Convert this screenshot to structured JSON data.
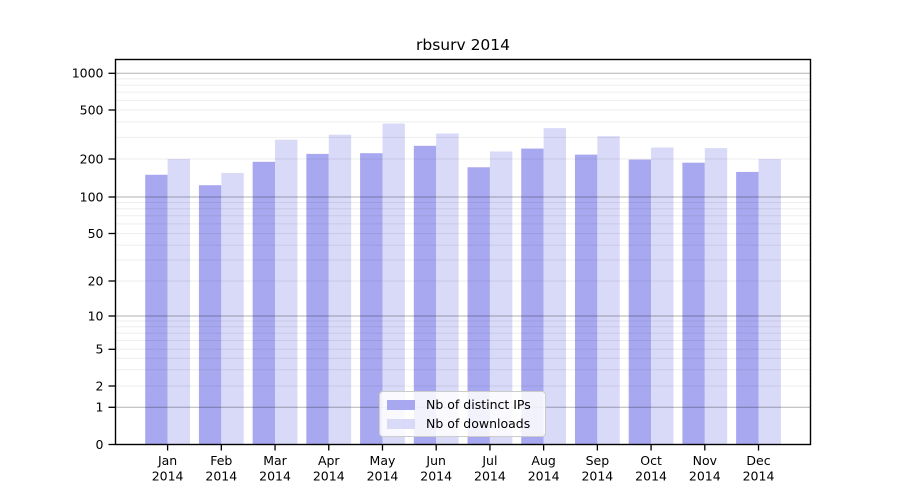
{
  "title": "rbsurv 2014",
  "colors": {
    "distinct_ips": "#a8a8f0",
    "downloads": "#d9d9f8",
    "major_grid": "rgba(0,0,0,0.30)",
    "minor_grid": "rgba(0,0,0,0.07)",
    "axis": "#000000"
  },
  "chart_data": {
    "type": "bar",
    "title": "rbsurv 2014",
    "xlabel": "",
    "ylabel": "",
    "y_scale": "log-like (labeled ticks 0,1,2,5,...,1000; minor log gridlines)",
    "y_ticks": [
      0,
      1,
      2,
      5,
      10,
      20,
      50,
      100,
      200,
      500,
      1000
    ],
    "ylim": [
      0,
      1300
    ],
    "grid": "on (major at powers of 10 darker, log minors lighter, drawn over bars)",
    "legend_position": "inside bottom-center",
    "categories": [
      {
        "month": "Jan",
        "year": "2014"
      },
      {
        "month": "Feb",
        "year": "2014"
      },
      {
        "month": "Mar",
        "year": "2014"
      },
      {
        "month": "Apr",
        "year": "2014"
      },
      {
        "month": "May",
        "year": "2014"
      },
      {
        "month": "Jun",
        "year": "2014"
      },
      {
        "month": "Jul",
        "year": "2014"
      },
      {
        "month": "Aug",
        "year": "2014"
      },
      {
        "month": "Sep",
        "year": "2014"
      },
      {
        "month": "Oct",
        "year": "2014"
      },
      {
        "month": "Nov",
        "year": "2014"
      },
      {
        "month": "Dec",
        "year": "2014"
      }
    ],
    "series": [
      {
        "name": "Nb of distinct IPs",
        "color": "#a8a8f0",
        "values": [
          150,
          124,
          190,
          220,
          223,
          256,
          172,
          243,
          217,
          198,
          187,
          158
        ]
      },
      {
        "name": "Nb of downloads",
        "color": "#d9d9f8",
        "values": [
          200,
          155,
          287,
          315,
          388,
          322,
          230,
          356,
          306,
          248,
          245,
          200
        ]
      }
    ]
  }
}
